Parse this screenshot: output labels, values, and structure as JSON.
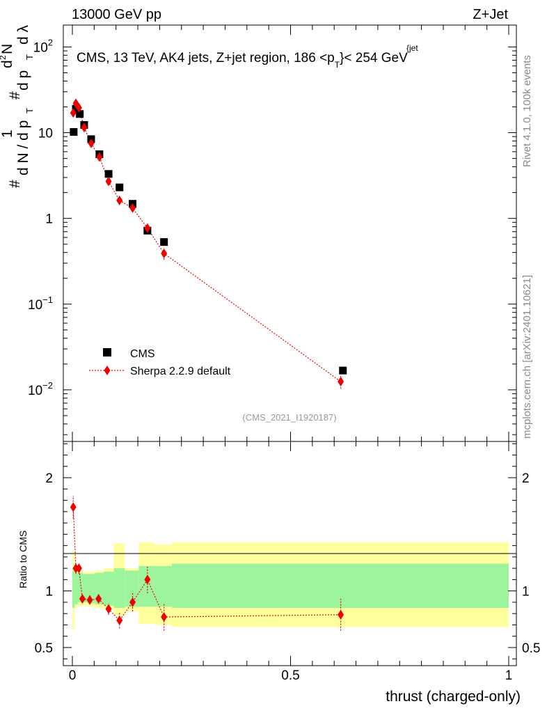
{
  "header": {
    "left": "13000 GeV pp",
    "right": "Z+Jet"
  },
  "side_labels": {
    "rivet": "Rivet 4.1.0,  100k events",
    "mcplots": "mcplots.cern.ch [arXiv:2401.10621]"
  },
  "chart_data": {
    "type": "scatter",
    "title": "CMS, 13 TeV, AK4 jets, Z+jet region, 186 <p",
    "title_sub": "T",
    "title_sup": "{jet",
    "title_tail": "}< 254 GeV",
    "reference": "(CMS_2021_I1920187)",
    "xlabel": "thrust (charged-only)",
    "xlim": [
      -0.02,
      1.0
    ],
    "x_ticks": [
      {
        "v": 0,
        "label": "0"
      },
      {
        "v": 0.5,
        "label": "0.5"
      },
      {
        "v": 1,
        "label": "1"
      }
    ],
    "main_panel": {
      "yscale": "log",
      "ylim": [
        0.0025,
        180
      ],
      "ylabel_parts": [
        "#",
        "d N / d p",
        "T",
        "1",
        "#",
        "d p",
        "T",
        "d",
        "2",
        "N",
        "d λ"
      ],
      "y_ticks": [
        {
          "v": 0.01,
          "base": "10",
          "exp": "−2"
        },
        {
          "v": 0.1,
          "base": "10",
          "exp": "−1"
        },
        {
          "v": 1,
          "base": "1",
          "exp": ""
        },
        {
          "v": 10,
          "base": "10",
          "exp": ""
        },
        {
          "v": 100,
          "base": "10",
          "exp": "2"
        }
      ],
      "legend": {
        "position": "lower-left",
        "entries": [
          "CMS",
          "Sherpa 2.2.9 default"
        ]
      },
      "series": [
        {
          "name": "CMS",
          "marker": "square",
          "color": "#000000",
          "points": [
            {
              "x": 0.003,
              "y": 10.2
            },
            {
              "x": 0.008,
              "y": 19.0
            },
            {
              "x": 0.017,
              "y": 16.5
            },
            {
              "x": 0.027,
              "y": 12.3
            },
            {
              "x": 0.043,
              "y": 8.4
            },
            {
              "x": 0.062,
              "y": 5.6
            },
            {
              "x": 0.083,
              "y": 3.3
            },
            {
              "x": 0.108,
              "y": 2.3
            },
            {
              "x": 0.138,
              "y": 1.48
            },
            {
              "x": 0.172,
              "y": 0.72
            },
            {
              "x": 0.21,
              "y": 0.53
            },
            {
              "x": 0.62,
              "y": 0.0168
            }
          ]
        },
        {
          "name": "Sherpa 2.2.9 default",
          "marker": "diamond",
          "color": "#ee0000",
          "points": [
            {
              "x": 0.002,
              "y": 17.0,
              "err": 1.2
            },
            {
              "x": 0.008,
              "y": 22.0,
              "err": 1.3
            },
            {
              "x": 0.015,
              "y": 19.5,
              "err": 1.2
            },
            {
              "x": 0.027,
              "y": 11.5,
              "err": 0.8
            },
            {
              "x": 0.043,
              "y": 7.5,
              "err": 0.6
            },
            {
              "x": 0.062,
              "y": 5.2,
              "err": 0.4
            },
            {
              "x": 0.083,
              "y": 2.7,
              "err": 0.25
            },
            {
              "x": 0.108,
              "y": 1.62,
              "err": 0.15
            },
            {
              "x": 0.138,
              "y": 1.32,
              "err": 0.12
            },
            {
              "x": 0.172,
              "y": 0.77,
              "err": 0.08
            },
            {
              "x": 0.21,
              "y": 0.39,
              "err": 0.06
            },
            {
              "x": 0.615,
              "y": 0.0125,
              "err": 0.0022
            }
          ]
        }
      ]
    },
    "ratio_panel": {
      "ylabel": "Ratio to CMS",
      "ylim": [
        0.34,
        2.32
      ],
      "y_ticks": [
        {
          "v": 0.5,
          "label": "0.5"
        },
        {
          "v": 1,
          "label": "1"
        },
        {
          "v": 2,
          "label": "2"
        }
      ],
      "bands": [
        {
          "x0": 0.0,
          "x1": 0.005,
          "y_lo": 0.66,
          "y_hi": 1.35,
          "stat_lo": 0.85,
          "stat_hi": 1.2
        },
        {
          "x0": 0.005,
          "x1": 0.012,
          "y_lo": 0.85,
          "y_hi": 1.2,
          "stat_lo": 0.88,
          "stat_hi": 1.18
        },
        {
          "x0": 0.012,
          "x1": 0.022,
          "y_lo": 0.87,
          "y_hi": 1.18,
          "stat_lo": 0.9,
          "stat_hi": 1.16
        },
        {
          "x0": 0.022,
          "x1": 0.035,
          "y_lo": 0.87,
          "y_hi": 1.17,
          "stat_lo": 0.9,
          "stat_hi": 1.15
        },
        {
          "x0": 0.035,
          "x1": 0.052,
          "y_lo": 0.86,
          "y_hi": 1.17,
          "stat_lo": 0.89,
          "stat_hi": 1.15
        },
        {
          "x0": 0.052,
          "x1": 0.072,
          "y_lo": 0.85,
          "y_hi": 1.18,
          "stat_lo": 0.88,
          "stat_hi": 1.16
        },
        {
          "x0": 0.072,
          "x1": 0.095,
          "y_lo": 0.84,
          "y_hi": 1.2,
          "stat_lo": 0.87,
          "stat_hi": 1.17
        },
        {
          "x0": 0.095,
          "x1": 0.12,
          "y_lo": 0.78,
          "y_hi": 1.42,
          "stat_lo": 0.85,
          "stat_hi": 1.2
        },
        {
          "x0": 0.12,
          "x1": 0.152,
          "y_lo": 0.82,
          "y_hi": 1.2,
          "stat_lo": 0.86,
          "stat_hi": 1.18
        },
        {
          "x0": 0.152,
          "x1": 0.188,
          "y_lo": 0.71,
          "y_hi": 1.43,
          "stat_lo": 0.86,
          "stat_hi": 1.22
        },
        {
          "x0": 0.188,
          "x1": 0.228,
          "y_lo": 0.7,
          "y_hi": 1.41,
          "stat_lo": 0.86,
          "stat_hi": 1.22
        },
        {
          "x0": 0.228,
          "x1": 1.0,
          "y_lo": 0.68,
          "y_hi": 1.43,
          "stat_lo": 0.85,
          "stat_hi": 1.24
        }
      ],
      "series": [
        {
          "name": "Sherpa 2.2.9 default / CMS",
          "color": "#ee0000",
          "points": [
            {
              "x": 0.002,
              "y": 1.74,
              "err": 0.1
            },
            {
              "x": 0.008,
              "y": 1.2,
              "err": 0.05
            },
            {
              "x": 0.015,
              "y": 1.2,
              "err": 0.05
            },
            {
              "x": 0.023,
              "y": 0.93,
              "err": 0.04
            },
            {
              "x": 0.04,
              "y": 0.92,
              "err": 0.04
            },
            {
              "x": 0.06,
              "y": 0.93,
              "err": 0.04
            },
            {
              "x": 0.083,
              "y": 0.84,
              "err": 0.05
            },
            {
              "x": 0.108,
              "y": 0.74,
              "err": 0.07
            },
            {
              "x": 0.138,
              "y": 0.9,
              "err": 0.08
            },
            {
              "x": 0.172,
              "y": 1.1,
              "err": 0.12
            },
            {
              "x": 0.21,
              "y": 0.77,
              "err": 0.12
            },
            {
              "x": 0.615,
              "y": 0.79,
              "err": 0.14
            }
          ]
        }
      ]
    },
    "colors": {
      "band_outer": "#ffff9e",
      "band_inner": "#9cf59c",
      "data": "#000000",
      "mc": "#ee0000"
    }
  }
}
